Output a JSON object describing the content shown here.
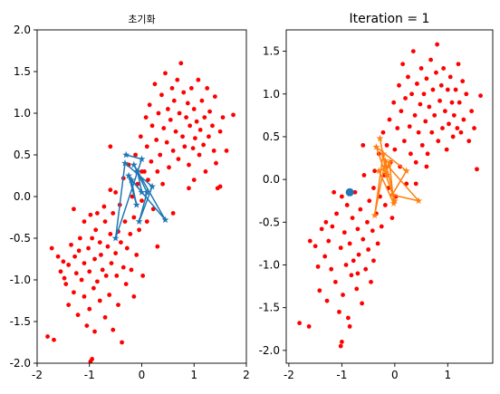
{
  "chart_data": [
    {
      "type": "scatter",
      "title": "초기화",
      "xlabel": "",
      "ylabel": "",
      "xlim": [
        -2,
        2
      ],
      "ylim": [
        -2,
        2
      ],
      "xticks": [
        -2,
        -1,
        0,
        1,
        2
      ],
      "yticks": [
        -2.0,
        -1.5,
        -1.0,
        -0.5,
        0.0,
        0.5,
        1.0,
        1.5,
        2.0
      ],
      "xtick_labels": [
        "-2",
        "-1",
        "0",
        "1",
        "2"
      ],
      "ytick_labels": [
        "-2.0",
        "-1.5",
        "-1.0",
        "-0.5",
        "0.0",
        "0.5",
        "1.0",
        "1.5",
        "2.0"
      ],
      "grid": false,
      "colors": {
        "points": "#ff0000",
        "path": "#1f77b4"
      },
      "scatter_points": [
        [
          -1.8,
          -1.68
        ],
        [
          -1.68,
          -1.72
        ],
        [
          -1.72,
          -0.62
        ],
        [
          -1.6,
          -0.72
        ],
        [
          -1.55,
          -0.9
        ],
        [
          -1.5,
          -0.78
        ],
        [
          -1.48,
          -0.98
        ],
        [
          -1.45,
          -1.05
        ],
        [
          -1.4,
          -1.3
        ],
        [
          -1.4,
          -0.82
        ],
        [
          -1.35,
          -0.58
        ],
        [
          -1.3,
          -1.15
        ],
        [
          -1.28,
          -0.72
        ],
        [
          -1.25,
          -0.92
        ],
        [
          -1.22,
          -1.42
        ],
        [
          -1.2,
          -0.65
        ],
        [
          -1.18,
          -0.5
        ],
        [
          -1.15,
          -1.0
        ],
        [
          -1.1,
          -1.2
        ],
        [
          -1.1,
          -0.8
        ],
        [
          -1.1,
          -0.3
        ],
        [
          -1.05,
          -1.55
        ],
        [
          -1.02,
          -0.62
        ],
        [
          -1.0,
          -1.35
        ],
        [
          -1.0,
          -0.9
        ],
        [
          -0.98,
          -0.22
        ],
        [
          -0.95,
          -0.5
        ],
        [
          -0.92,
          -1.1
        ],
        [
          -0.9,
          -0.75
        ],
        [
          -0.9,
          -1.62
        ],
        [
          -0.88,
          -0.4
        ],
        [
          -0.85,
          -0.2
        ],
        [
          -0.85,
          -1.02
        ],
        [
          -0.8,
          -0.55
        ],
        [
          -0.8,
          -1.25
        ],
        [
          -0.78,
          -0.7
        ],
        [
          -0.75,
          -0.88
        ],
        [
          -0.72,
          -0.12
        ],
        [
          -0.7,
          -1.45
        ],
        [
          -0.7,
          -0.3
        ],
        [
          -0.68,
          -0.95
        ],
        [
          -0.65,
          -0.6
        ],
        [
          -0.62,
          -1.18
        ],
        [
          -0.6,
          0.08
        ],
        [
          -0.6,
          -0.45
        ],
        [
          -0.58,
          -0.8
        ],
        [
          -0.55,
          -1.6
        ],
        [
          -0.55,
          -0.2
        ],
        [
          -0.5,
          -0.68
        ],
        [
          -0.5,
          0.05
        ],
        [
          -0.48,
          -0.95
        ],
        [
          -0.45,
          -0.42
        ],
        [
          -0.45,
          -1.3
        ],
        [
          -0.42,
          -0.1
        ],
        [
          -0.4,
          -0.55
        ],
        [
          -0.38,
          -1.75
        ],
        [
          -0.35,
          -0.85
        ],
        [
          -0.35,
          0.22
        ],
        [
          -0.32,
          -0.3
        ],
        [
          -0.3,
          -1.05
        ],
        [
          -0.28,
          -0.62
        ],
        [
          -0.25,
          0.38
        ],
        [
          -0.22,
          -0.45
        ],
        [
          -0.2,
          -0.88
        ],
        [
          -0.18,
          0.0
        ],
        [
          -0.15,
          -1.2
        ],
        [
          -0.15,
          -0.25
        ],
        [
          -0.12,
          0.5
        ],
        [
          -0.1,
          -0.7
        ],
        [
          -0.08,
          0.15
        ],
        [
          -0.05,
          -0.4
        ],
        [
          -0.02,
          0.72
        ],
        [
          0.0,
          -0.05
        ],
        [
          0.02,
          -0.95
        ],
        [
          0.05,
          0.3
        ],
        [
          0.08,
          0.95
        ],
        [
          0.1,
          0.6
        ],
        [
          0.1,
          -0.3
        ],
        [
          0.12,
          0.2
        ],
        [
          0.15,
          1.1
        ],
        [
          0.18,
          0.42
        ],
        [
          0.2,
          0.85
        ],
        [
          0.22,
          -0.15
        ],
        [
          0.25,
          1.35
        ],
        [
          0.28,
          0.68
        ],
        [
          0.3,
          0.3
        ],
        [
          0.32,
          1.0
        ],
        [
          0.35,
          0.5
        ],
        [
          0.38,
          1.22
        ],
        [
          0.4,
          0.15
        ],
        [
          0.42,
          0.82
        ],
        [
          0.45,
          1.48
        ],
        [
          0.48,
          0.65
        ],
        [
          0.5,
          1.05
        ],
        [
          0.52,
          0.35
        ],
        [
          0.55,
          0.92
        ],
        [
          0.58,
          1.3
        ],
        [
          0.6,
          0.55
        ],
        [
          0.62,
          1.15
        ],
        [
          0.65,
          0.78
        ],
        [
          0.68,
          1.4
        ],
        [
          0.7,
          0.45
        ],
        [
          0.72,
          1.0
        ],
        [
          0.75,
          1.6
        ],
        [
          0.78,
          0.72
        ],
        [
          0.8,
          1.25
        ],
        [
          0.82,
          0.6
        ],
        [
          0.85,
          0.95
        ],
        [
          0.88,
          1.12
        ],
        [
          0.9,
          0.38
        ],
        [
          0.92,
          0.85
        ],
        [
          0.95,
          1.3
        ],
        [
          0.98,
          0.58
        ],
        [
          1.0,
          1.05
        ],
        [
          1.02,
          0.7
        ],
        [
          1.05,
          0.9
        ],
        [
          1.08,
          1.4
        ],
        [
          1.1,
          0.5
        ],
        [
          1.12,
          0.8
        ],
        [
          1.15,
          1.15
        ],
        [
          1.18,
          0.62
        ],
        [
          1.2,
          0.95
        ],
        [
          1.22,
          0.3
        ],
        [
          1.25,
          1.3
        ],
        [
          1.28,
          0.72
        ],
        [
          1.3,
          1.02
        ],
        [
          1.35,
          0.85
        ],
        [
          1.38,
          0.55
        ],
        [
          1.4,
          1.2
        ],
        [
          1.42,
          0.4
        ],
        [
          1.45,
          0.1
        ],
        [
          1.5,
          0.78
        ],
        [
          1.55,
          0.95
        ],
        [
          1.62,
          0.55
        ],
        [
          1.75,
          0.98
        ],
        [
          0.3,
          -0.6
        ],
        [
          0.6,
          -0.2
        ],
        [
          0.9,
          0.1
        ],
        [
          -0.6,
          0.6
        ],
        [
          0.0,
          0.3
        ],
        [
          -1.3,
          -0.15
        ],
        [
          -0.95,
          -1.95
        ],
        [
          -0.98,
          -1.98
        ],
        [
          1.5,
          0.12
        ],
        [
          1.0,
          0.2
        ]
      ],
      "path": [
        [
          -0.3,
          0.5
        ],
        [
          0.0,
          0.45
        ],
        [
          -0.5,
          -0.5
        ],
        [
          -0.32,
          0.4
        ],
        [
          0.2,
          0.12
        ],
        [
          -0.05,
          -0.3
        ],
        [
          0.1,
          0.05
        ],
        [
          -0.15,
          0.38
        ],
        [
          0.45,
          -0.28
        ],
        [
          -0.2,
          0.2
        ],
        [
          -0.1,
          -0.1
        ],
        [
          -0.25,
          0.25
        ],
        [
          0.0,
          0.05
        ],
        [
          -0.08,
          0.3
        ]
      ],
      "centroid": null
    },
    {
      "type": "scatter",
      "title": "Iteration = 1",
      "xlabel": "",
      "ylabel": "",
      "xlim": [
        -2.05,
        1.85
      ],
      "ylim": [
        -2.15,
        1.75
      ],
      "xticks": [
        -2,
        -1,
        0,
        1
      ],
      "yticks": [
        -2.0,
        -1.5,
        -1.0,
        -0.5,
        0.0,
        0.5,
        1.0,
        1.5
      ],
      "xtick_labels": [
        "-2",
        "-1",
        "0",
        "1"
      ],
      "ytick_labels": [
        "-2.0",
        "-1.5",
        "-1.0",
        "-0.5",
        "0.0",
        "0.5",
        "1.0",
        "1.5"
      ],
      "grid": false,
      "colors": {
        "points": "#ff0000",
        "path": "#ff7f0e",
        "centroid": "#1f77b4"
      },
      "scatter_points": [
        [
          -1.8,
          -1.68
        ],
        [
          -1.62,
          -1.72
        ],
        [
          -1.6,
          -0.72
        ],
        [
          -1.5,
          -0.78
        ],
        [
          -1.45,
          -1.02
        ],
        [
          -1.42,
          -1.3
        ],
        [
          -1.38,
          -0.58
        ],
        [
          -1.32,
          -0.9
        ],
        [
          -1.28,
          -1.42
        ],
        [
          -1.25,
          -0.72
        ],
        [
          -1.2,
          -1.05
        ],
        [
          -1.18,
          -0.55
        ],
        [
          -1.12,
          -1.2
        ],
        [
          -1.1,
          -0.4
        ],
        [
          -1.05,
          -1.55
        ],
        [
          -1.02,
          -0.8
        ],
        [
          -1.0,
          -0.2
        ],
        [
          -0.98,
          -1.35
        ],
        [
          -0.95,
          -0.62
        ],
        [
          -0.92,
          -1.0
        ],
        [
          -0.9,
          -0.3
        ],
        [
          -0.88,
          -1.62
        ],
        [
          -0.85,
          -0.75
        ],
        [
          -0.82,
          -1.12
        ],
        [
          -0.8,
          -0.45
        ],
        [
          -0.78,
          -0.95
        ],
        [
          -0.75,
          -0.15
        ],
        [
          -0.72,
          -1.28
        ],
        [
          -0.7,
          -0.58
        ],
        [
          -0.68,
          -0.88
        ],
        [
          -0.65,
          -0.35
        ],
        [
          -0.62,
          -1.45
        ],
        [
          -0.6,
          -0.7
        ],
        [
          -0.58,
          0.05
        ],
        [
          -0.55,
          -1.05
        ],
        [
          -0.52,
          -0.5
        ],
        [
          -0.5,
          -0.82
        ],
        [
          -0.48,
          -0.25
        ],
        [
          -0.45,
          -1.2
        ],
        [
          -0.42,
          -0.6
        ],
        [
          -0.4,
          -0.95
        ],
        [
          -0.38,
          0.1
        ],
        [
          -0.35,
          -0.4
        ],
        [
          -0.32,
          -0.75
        ],
        [
          -0.3,
          0.3
        ],
        [
          -0.28,
          -0.2
        ],
        [
          -0.25,
          -0.55
        ],
        [
          -0.22,
          0.55
        ],
        [
          -0.2,
          0.05
        ],
        [
          -0.18,
          -0.3
        ],
        [
          -0.15,
          0.4
        ],
        [
          -0.12,
          -0.1
        ],
        [
          -0.1,
          0.7
        ],
        [
          -0.08,
          0.2
        ],
        [
          -0.05,
          -0.45
        ],
        [
          -0.02,
          0.9
        ],
        [
          0.0,
          0.35
        ],
        [
          0.02,
          -0.2
        ],
        [
          0.05,
          0.6
        ],
        [
          0.08,
          1.1
        ],
        [
          0.1,
          0.15
        ],
        [
          0.12,
          0.8
        ],
        [
          0.15,
          1.35
        ],
        [
          0.18,
          0.45
        ],
        [
          0.2,
          0.95
        ],
        [
          0.22,
          -0.05
        ],
        [
          0.25,
          1.2
        ],
        [
          0.28,
          0.62
        ],
        [
          0.3,
          0.3
        ],
        [
          0.32,
          1.0
        ],
        [
          0.35,
          1.5
        ],
        [
          0.38,
          0.75
        ],
        [
          0.4,
          0.2
        ],
        [
          0.42,
          1.12
        ],
        [
          0.45,
          0.55
        ],
        [
          0.48,
          0.88
        ],
        [
          0.5,
          1.3
        ],
        [
          0.52,
          0.4
        ],
        [
          0.55,
          1.0
        ],
        [
          0.58,
          0.68
        ],
        [
          0.6,
          1.18
        ],
        [
          0.62,
          0.3
        ],
        [
          0.65,
          0.85
        ],
        [
          0.68,
          1.4
        ],
        [
          0.7,
          0.55
        ],
        [
          0.72,
          1.05
        ],
        [
          0.75,
          0.75
        ],
        [
          0.78,
          1.25
        ],
        [
          0.8,
          1.58
        ],
        [
          0.82,
          0.45
        ],
        [
          0.85,
          0.92
        ],
        [
          0.88,
          1.1
        ],
        [
          0.9,
          0.6
        ],
        [
          0.92,
          1.3
        ],
        [
          0.95,
          0.8
        ],
        [
          0.98,
          0.35
        ],
        [
          1.0,
          1.05
        ],
        [
          1.02,
          0.65
        ],
        [
          1.05,
          1.2
        ],
        [
          1.08,
          0.9
        ],
        [
          1.1,
          0.5
        ],
        [
          1.12,
          0.75
        ],
        [
          1.15,
          1.05
        ],
        [
          1.18,
          0.6
        ],
        [
          1.2,
          1.35
        ],
        [
          1.22,
          0.9
        ],
        [
          1.25,
          0.55
        ],
        [
          1.28,
          1.15
        ],
        [
          1.3,
          0.7
        ],
        [
          1.35,
          1.0
        ],
        [
          1.4,
          0.45
        ],
        [
          1.45,
          0.8
        ],
        [
          1.5,
          0.6
        ],
        [
          1.55,
          0.12
        ],
        [
          1.62,
          0.98
        ],
        [
          -0.6,
          0.4
        ],
        [
          -1.3,
          -0.5
        ],
        [
          -1.0,
          -1.9
        ],
        [
          -1.02,
          -1.95
        ],
        [
          -0.4,
          -0.1
        ],
        [
          0.4,
          -0.05
        ],
        [
          0.6,
          0.15
        ],
        [
          -1.15,
          -0.15
        ],
        [
          -0.85,
          -1.72
        ],
        [
          -0.7,
          -1.1
        ]
      ],
      "path": [
        [
          -0.28,
          0.48
        ],
        [
          -0.15,
          0.05
        ],
        [
          -0.22,
          0.3
        ],
        [
          -0.38,
          -0.42
        ],
        [
          -0.18,
          0.22
        ],
        [
          0.0,
          -0.25
        ],
        [
          -0.35,
          0.38
        ],
        [
          0.22,
          0.1
        ],
        [
          -0.05,
          -0.18
        ],
        [
          0.45,
          -0.25
        ],
        [
          -0.12,
          0.15
        ],
        [
          -0.3,
          0.1
        ],
        [
          -0.02,
          -0.28
        ],
        [
          -0.1,
          0.2
        ]
      ],
      "centroid": [
        -0.85,
        -0.15
      ]
    }
  ]
}
